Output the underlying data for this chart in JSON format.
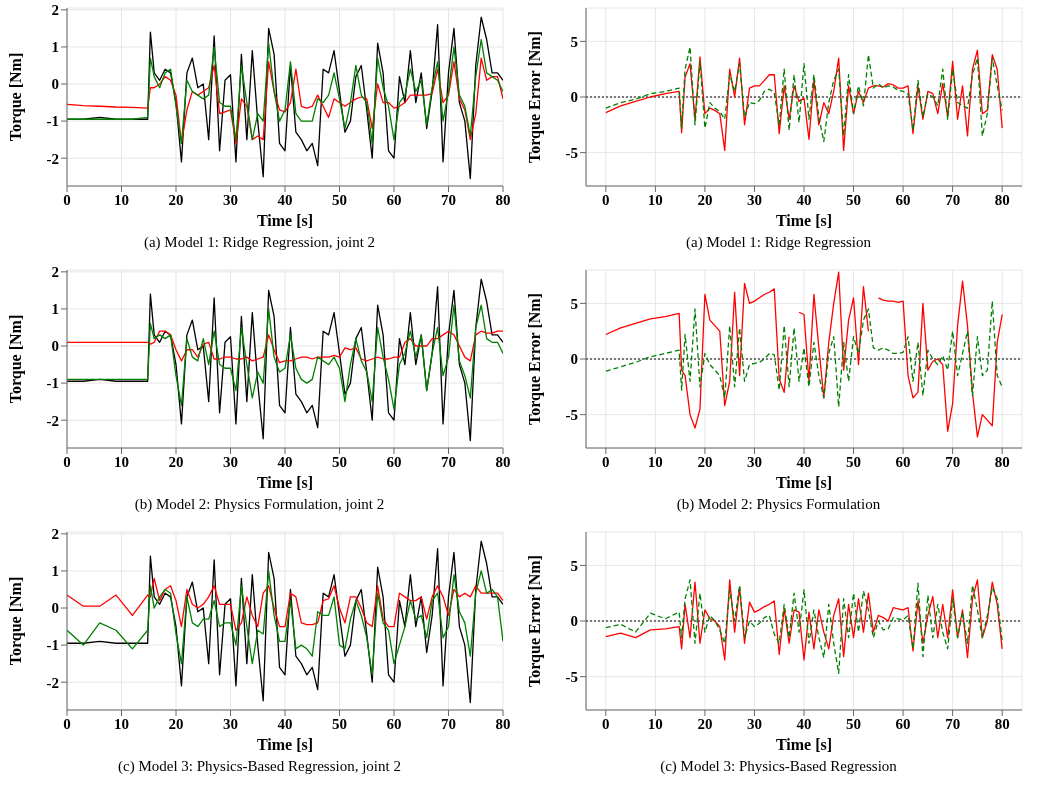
{
  "chart_data": [
    {
      "type": "line",
      "title": "(a) Model 1: Ridge Regression, joint 2",
      "xlabel": "Time [s]",
      "ylabel": "Torque [Nm]",
      "xlim": [
        0,
        80
      ],
      "xticks": [
        0,
        10,
        20,
        30,
        40,
        50,
        60,
        70,
        80
      ],
      "ylim": [
        -2.75,
        2.05
      ],
      "yticks": [
        -2,
        -1,
        0,
        1,
        2
      ],
      "grid": true,
      "x": [
        0,
        3,
        6,
        9,
        12,
        14.8,
        15.3,
        16,
        17,
        18,
        19,
        20,
        21,
        22,
        23,
        24,
        25,
        26,
        27,
        28,
        29,
        30,
        31,
        32,
        33,
        34,
        35,
        36,
        37,
        38,
        39,
        40,
        41,
        42,
        43,
        44,
        45,
        46,
        47,
        48,
        49,
        50,
        51,
        52,
        53,
        54,
        55,
        56,
        57,
        58,
        59,
        60,
        61,
        62,
        63,
        64,
        65,
        66,
        67,
        68,
        69,
        70,
        71,
        72,
        73,
        74,
        75,
        76,
        77,
        78,
        79,
        80
      ],
      "series": [
        {
          "color": "#000000",
          "values": [
            -0.95,
            -0.95,
            -0.9,
            -0.95,
            -0.95,
            -0.95,
            1.4,
            0.3,
            0.1,
            0.4,
            0.3,
            -0.5,
            -2.1,
            0.3,
            0.7,
            -0.1,
            0,
            -1.5,
            1.3,
            -1.8,
            0.1,
            0.25,
            -2.1,
            0.8,
            -1.5,
            0.9,
            -1.0,
            -2.5,
            1.5,
            0.8,
            -1.6,
            -1.8,
            0.5,
            -1.3,
            -1.5,
            -1.8,
            -1.6,
            -2.2,
            0.4,
            0.3,
            0.9,
            -0.2,
            -1.3,
            -1.0,
            0.2,
            0.5,
            -0.7,
            -2.0,
            1.1,
            0.3,
            -1.8,
            -2.0,
            0.2,
            -0.5,
            0.9,
            -0.5,
            0.3,
            -1.2,
            -0.2,
            1.6,
            -2.1,
            0.3,
            1.5,
            -0.5,
            -1.0,
            -2.55,
            0.5,
            1.8,
            1.2,
            0.3,
            0.3,
            0.1
          ]
        },
        {
          "color": "#ff0000",
          "values": [
            -0.55,
            -0.58,
            -0.6,
            -0.62,
            -0.63,
            -0.65,
            -0.1,
            -0.1,
            0.0,
            0.2,
            0.1,
            -0.3,
            -1.6,
            -0.7,
            -0.2,
            -0.3,
            -0.2,
            -0.1,
            0.5,
            -0.8,
            -0.75,
            -0.7,
            -1.6,
            -0.4,
            -0.6,
            -1.5,
            -1.4,
            -1.5,
            0.6,
            -0.2,
            -0.7,
            -0.75,
            -0.5,
            0.4,
            -0.6,
            -0.65,
            -0.6,
            -0.3,
            -0.6,
            -0.9,
            -0.4,
            -0.5,
            -0.6,
            -0.5,
            -0.4,
            -0.35,
            -0.4,
            -1.2,
            0.0,
            -0.5,
            -0.5,
            -0.65,
            -0.6,
            -0.5,
            -0.3,
            -0.3,
            -0.3,
            -0.3,
            -0.25,
            0.4,
            -0.5,
            -0.3,
            0.6,
            -0.4,
            -0.7,
            -1.5,
            -0.8,
            0.7,
            0.1,
            0.2,
            0.2,
            -0.4
          ]
        },
        {
          "color": "#008000",
          "values": [
            -0.95,
            -0.95,
            -0.95,
            -0.95,
            -0.95,
            -0.9,
            0.7,
            0.2,
            -0.1,
            0.3,
            0.4,
            -0.6,
            -1.6,
            0.1,
            -0.2,
            -0.3,
            -0.4,
            -0.3,
            1.0,
            -0.5,
            -0.6,
            -0.6,
            -1.5,
            0.5,
            -0.5,
            -1.5,
            -0.8,
            -1.0,
            1.1,
            -0.2,
            -1.0,
            -0.7,
            0.6,
            -0.8,
            -1.0,
            -1.0,
            -1.0,
            -0.4,
            -0.5,
            -0.3,
            0.3,
            -0.4,
            -1.2,
            -0.5,
            0.5,
            -0.3,
            -0.5,
            -1.6,
            0.7,
            -0.1,
            -0.6,
            -1.5,
            -0.5,
            -0.3,
            0.4,
            -0.2,
            0.1,
            -1.1,
            -0.1,
            0.6,
            -1.0,
            -0.2,
            1.0,
            -0.3,
            -0.6,
            -1.4,
            0.2,
            1.2,
            0.3,
            0.2,
            0.1,
            -0.2
          ]
        }
      ]
    },
    {
      "type": "line",
      "title": "(a) Model 1: Ridge Regression",
      "xlabel": "Time [s]",
      "ylabel": "Torque Error [Nm]",
      "xlim": [
        -4,
        84
      ],
      "xticks": [
        0,
        10,
        20,
        30,
        40,
        50,
        60,
        70,
        80
      ],
      "ylim": [
        -8,
        8
      ],
      "yticks": [
        -5,
        0,
        5
      ],
      "grid": true,
      "ref_lines": [
        {
          "axis": "y",
          "value": 0,
          "color": "#000000",
          "line_style": "dotted"
        }
      ],
      "x": [
        0,
        3,
        6,
        9,
        12,
        14.8,
        15.3,
        16,
        17,
        18,
        19,
        20,
        21,
        22,
        23,
        24,
        25,
        26,
        27,
        28,
        29,
        30,
        31,
        32,
        33,
        34,
        35,
        36,
        37,
        38,
        39,
        40,
        41,
        42,
        43,
        44,
        45,
        46,
        47,
        48,
        49,
        50,
        51,
        52,
        53,
        54,
        55,
        56,
        57,
        58,
        59,
        60,
        61,
        62,
        63,
        64,
        65,
        66,
        67,
        68,
        69,
        70,
        71,
        72,
        73,
        74,
        75,
        76,
        77,
        78,
        79,
        80
      ],
      "series": [
        {
          "color": "#ff0000",
          "values": [
            -1.4,
            -0.8,
            -0.4,
            0.0,
            0.3,
            0.5,
            -3.2,
            1.8,
            3.0,
            -2.0,
            3.6,
            -1.5,
            -1.0,
            -1.2,
            -1.5,
            -4.8,
            2.5,
            0.0,
            3.5,
            -2.5,
            0.8,
            1.0,
            1.0,
            1.5,
            2.0,
            2.0,
            -3.3,
            1.0,
            -2.0,
            1.0,
            -0.4,
            -0.1,
            -3.8,
            1.5,
            -2.5,
            -0.5,
            -1.5,
            0.5,
            3.5,
            -4.8,
            1.0,
            -1.5,
            0.5,
            -0.5,
            0.8,
            1.0,
            1.0,
            0.9,
            1.2,
            1.1,
            0.8,
            0.8,
            1.0,
            -3.3,
            1.0,
            -2.0,
            0.5,
            0.3,
            -1.5,
            1.2,
            -1.8,
            3.2,
            -2.0,
            1.0,
            -3.5,
            2.5,
            4.2,
            -1.5,
            -1.2,
            3.8,
            2.5,
            -2.8
          ]
        },
        {
          "color": "#008000",
          "line_style": "dashed",
          "values": [
            -1.0,
            -0.5,
            -0.2,
            0.3,
            0.5,
            0.8,
            -2.8,
            2.5,
            4.5,
            -2.5,
            3.2,
            -2.8,
            -0.5,
            -1.0,
            -1.3,
            -2.0,
            2.0,
            0.5,
            3.0,
            -1.8,
            -0.5,
            -0.6,
            -0.3,
            0.5,
            0.7,
            0.4,
            -2.5,
            2.5,
            -3.0,
            2.0,
            -2.3,
            3.0,
            -2.0,
            2.0,
            -1.8,
            -4.0,
            -0.5,
            1.5,
            2.5,
            -3.5,
            2.0,
            -1.5,
            1.0,
            -0.8,
            3.8,
            0.8,
            1.2,
            0.8,
            1.0,
            0.9,
            0.6,
            0.5,
            0.3,
            -3.0,
            1.5,
            -1.8,
            0.3,
            0.0,
            -0.8,
            2.5,
            -2.0,
            2.5,
            -0.5,
            -0.8,
            -1.0,
            2.0,
            3.5,
            -3.5,
            -1.5,
            3.5,
            1.0,
            -1.2
          ]
        }
      ]
    },
    {
      "type": "line",
      "title": "(b) Model 2: Physics Formulation, joint 2",
      "xlabel": "Time [s]",
      "ylabel": "Torque [Nm]",
      "xlim": [
        0,
        80
      ],
      "xticks": [
        0,
        10,
        20,
        30,
        40,
        50,
        60,
        70,
        80
      ],
      "ylim": [
        -2.75,
        2.05
      ],
      "yticks": [
        -2,
        -1,
        0,
        1,
        2
      ],
      "grid": true,
      "x": [
        0,
        3,
        6,
        9,
        12,
        14.8,
        15.3,
        16,
        17,
        18,
        19,
        20,
        21,
        22,
        23,
        24,
        25,
        26,
        27,
        28,
        29,
        30,
        31,
        32,
        33,
        34,
        35,
        36,
        37,
        38,
        39,
        40,
        41,
        42,
        43,
        44,
        45,
        46,
        47,
        48,
        49,
        50,
        51,
        52,
        53,
        54,
        55,
        56,
        57,
        58,
        59,
        60,
        61,
        62,
        63,
        64,
        65,
        66,
        67,
        68,
        69,
        70,
        71,
        72,
        73,
        74,
        75,
        76,
        77,
        78,
        79,
        80
      ],
      "series": [
        {
          "color": "#000000",
          "values": [
            -0.95,
            -0.95,
            -0.9,
            -0.95,
            -0.95,
            -0.95,
            1.4,
            0.3,
            0.1,
            0.4,
            0.3,
            -0.5,
            -2.1,
            0.3,
            0.7,
            -0.1,
            0,
            -1.5,
            1.3,
            -1.8,
            0.1,
            0.25,
            -2.1,
            0.8,
            -1.5,
            0.9,
            -1.0,
            -2.5,
            1.5,
            0.8,
            -1.6,
            -1.8,
            0.5,
            -1.3,
            -1.5,
            -1.8,
            -1.6,
            -2.2,
            0.4,
            0.3,
            0.9,
            -0.2,
            -1.3,
            -1.0,
            0.2,
            0.5,
            -0.7,
            -2.0,
            1.1,
            0.3,
            -1.8,
            -2.0,
            0.2,
            -0.5,
            0.9,
            -0.5,
            0.3,
            -1.2,
            -0.2,
            1.6,
            -2.1,
            0.3,
            1.5,
            -0.5,
            -1.0,
            -2.55,
            0.5,
            1.8,
            1.2,
            0.3,
            0.3,
            0.1
          ]
        },
        {
          "color": "#ff0000",
          "values": [
            0.1,
            0.1,
            0.1,
            0.1,
            0.1,
            0.1,
            0.05,
            0.1,
            0.4,
            0.4,
            0.3,
            -0.1,
            -0.4,
            -0.1,
            -0.1,
            -0.3,
            0.05,
            0.1,
            -0.35,
            -0.35,
            -0.3,
            -0.3,
            -0.35,
            -0.35,
            -0.3,
            -0.4,
            -0.35,
            -0.3,
            0.3,
            -0.1,
            -0.45,
            -0.4,
            -0.4,
            -0.35,
            -0.3,
            -0.3,
            -0.35,
            -0.3,
            -0.3,
            -0.3,
            -0.25,
            -0.3,
            -0.05,
            -0.1,
            -0.05,
            -0.35,
            -0.4,
            -0.35,
            -0.3,
            -0.35,
            -0.35,
            -0.3,
            -0.3,
            0.1,
            0.2,
            0.0,
            0.0,
            0.0,
            0.2,
            0.2,
            0.3,
            0.4,
            0.3,
            0.0,
            -0.3,
            -0.4,
            0.3,
            0.4,
            0.35,
            0.35,
            0.4,
            0.4
          ]
        },
        {
          "color": "#008000",
          "values": [
            -0.9,
            -0.9,
            -0.9,
            -0.9,
            -0.9,
            -0.9,
            0.6,
            0.2,
            0.3,
            0.2,
            0.3,
            -0.8,
            -1.6,
            0.2,
            -0.3,
            -0.4,
            0.2,
            -0.5,
            0.4,
            -0.5,
            -0.6,
            -0.6,
            -1.2,
            0.5,
            -0.5,
            -1.4,
            -0.7,
            -1.0,
            1.0,
            -0.3,
            -0.7,
            -0.6,
            0.3,
            -0.6,
            -0.9,
            -1.0,
            -0.9,
            -0.3,
            -0.4,
            -0.5,
            -0.3,
            -0.6,
            -1.5,
            -0.5,
            0.2,
            -0.4,
            -0.7,
            -1.5,
            0.5,
            -0.3,
            -0.9,
            -1.7,
            -0.5,
            -0.2,
            0.4,
            -0.3,
            0.3,
            -1.2,
            -0.2,
            0.5,
            -0.8,
            -0.3,
            1.1,
            -0.4,
            -0.8,
            -1.4,
            0.5,
            1.1,
            0.2,
            0.1,
            0.1,
            -0.2
          ]
        }
      ]
    },
    {
      "type": "line",
      "title": "(b) Model 2: Physics Formulation",
      "xlabel": "Time [s]",
      "ylabel": "Torque Error [Nm]",
      "xlim": [
        -4,
        84
      ],
      "xticks": [
        0,
        10,
        20,
        30,
        40,
        50,
        60,
        70,
        80
      ],
      "ylim": [
        -8,
        8
      ],
      "yticks": [
        -5,
        0,
        5
      ],
      "grid": true,
      "ref_lines": [
        {
          "axis": "y",
          "value": 0,
          "color": "#000000",
          "line_style": "dotted"
        }
      ],
      "x": [
        0,
        3,
        6,
        9,
        12,
        14.8,
        15.3,
        16,
        17,
        18,
        19,
        20,
        21,
        22,
        23,
        24,
        25,
        26,
        27,
        28,
        29,
        30,
        31,
        32,
        33,
        34,
        35,
        36,
        37,
        38,
        39,
        40,
        41,
        42,
        43,
        44,
        45,
        46,
        47,
        48,
        49,
        50,
        51,
        52,
        53,
        54,
        55,
        56,
        57,
        58,
        59,
        60,
        61,
        62,
        63,
        64,
        65,
        66,
        67,
        68,
        69,
        70,
        71,
        72,
        73,
        74,
        75,
        76,
        77,
        78,
        79,
        80
      ],
      "series": [
        {
          "color": "#ff0000",
          "values": [
            2.2,
            2.8,
            3.2,
            3.6,
            3.8,
            4.1,
            -1.0,
            -1.5,
            -5.0,
            -6.2,
            -4.5,
            5.8,
            3.5,
            3.0,
            2.5,
            -4.2,
            -2.0,
            6.0,
            -1.5,
            6.8,
            5.0,
            5.2,
            5.5,
            5.8,
            6.0,
            6.3,
            -1.8,
            -3.0,
            2.0,
            null,
            4.2,
            4.0,
            -2.0,
            5.8,
            1.0,
            -3.5,
            1.5,
            5.0,
            7.8,
            -1.0,
            3.5,
            5.5,
            -0.5,
            6.5,
            2.5,
            null,
            5.5,
            5.3,
            5.2,
            5.2,
            5.1,
            5.2,
            -1.5,
            -3.5,
            -3.0,
            5.0,
            -1.0,
            -0.2,
            0.0,
            -0.5,
            -6.5,
            -4.0,
            3.0,
            7.0,
            3.0,
            -3.0,
            -7.0,
            -5.0,
            -5.5,
            -6.0,
            1.5,
            4.0
          ]
        },
        {
          "color": "#008000",
          "line_style": "dashed",
          "values": [
            -1.1,
            -0.7,
            -0.3,
            0.2,
            0.5,
            0.8,
            -2.8,
            2.2,
            -2.0,
            4.5,
            -2.5,
            0.5,
            -0.5,
            -1.0,
            -1.5,
            -3.5,
            3.0,
            -2.5,
            2.8,
            -2.0,
            -0.5,
            -0.4,
            -0.3,
            0.0,
            0.5,
            0.4,
            -2.8,
            3.0,
            -2.5,
            2.8,
            -2.0,
            1.0,
            -2.5,
            1.5,
            -1.5,
            -3.5,
            0.5,
            2.0,
            -4.3,
            1.5,
            -2.0,
            2.0,
            0.5,
            3.5,
            4.5,
            1.0,
            0.8,
            1.0,
            0.8,
            0.5,
            0.5,
            0.6,
            2.0,
            -2.0,
            1.5,
            -3.3,
            0.8,
            0.0,
            -0.5,
            0.3,
            -1.0,
            2.5,
            -1.5,
            0.5,
            2.5,
            -3.3,
            2.0,
            -1.5,
            -1.0,
            5.2,
            -1.5,
            -2.5
          ]
        }
      ]
    },
    {
      "type": "line",
      "title": "(c) Model 3: Physics-Based Regression, joint 2",
      "xlabel": "Time [s]",
      "ylabel": "Torque [Nm]",
      "xlim": [
        0,
        80
      ],
      "xticks": [
        0,
        10,
        20,
        30,
        40,
        50,
        60,
        70,
        80
      ],
      "ylim": [
        -2.75,
        2.05
      ],
      "yticks": [
        -2,
        -1,
        0,
        1,
        2
      ],
      "grid": true,
      "x": [
        0,
        3,
        6,
        9,
        12,
        14.8,
        15.3,
        16,
        17,
        18,
        19,
        20,
        21,
        22,
        23,
        24,
        25,
        26,
        27,
        28,
        29,
        30,
        31,
        32,
        33,
        34,
        35,
        36,
        37,
        38,
        39,
        40,
        41,
        42,
        43,
        44,
        45,
        46,
        47,
        48,
        49,
        50,
        51,
        52,
        53,
        54,
        55,
        56,
        57,
        58,
        59,
        60,
        61,
        62,
        63,
        64,
        65,
        66,
        67,
        68,
        69,
        70,
        71,
        72,
        73,
        74,
        75,
        76,
        77,
        78,
        79,
        80
      ],
      "series": [
        {
          "color": "#000000",
          "values": [
            -0.95,
            -0.95,
            -0.9,
            -0.95,
            -0.95,
            -0.95,
            1.4,
            0.3,
            0.1,
            0.4,
            0.3,
            -0.5,
            -2.1,
            0.3,
            0.7,
            -0.1,
            0,
            -1.5,
            1.3,
            -1.8,
            0.1,
            0.25,
            -2.1,
            0.8,
            -1.5,
            0.9,
            -1.0,
            -2.5,
            1.5,
            0.8,
            -1.6,
            -1.8,
            0.5,
            -1.3,
            -1.5,
            -1.8,
            -1.6,
            -2.2,
            0.4,
            0.3,
            0.9,
            -0.2,
            -1.3,
            -1.0,
            0.2,
            0.5,
            -0.7,
            -2.0,
            1.1,
            0.3,
            -1.8,
            -2.0,
            0.2,
            -0.5,
            0.9,
            -0.5,
            0.3,
            -1.2,
            -0.2,
            1.6,
            -2.1,
            0.3,
            1.5,
            -0.5,
            -1.0,
            -2.55,
            0.5,
            1.8,
            1.2,
            0.3,
            0.3,
            0.1
          ]
        },
        {
          "color": "#ff0000",
          "values": [
            0.35,
            0.05,
            0.05,
            0.35,
            -0.2,
            0.35,
            0.3,
            0.8,
            0.2,
            0.5,
            0.6,
            0.2,
            -0.5,
            0.5,
            0.1,
            0.0,
            0.1,
            0.3,
            0.6,
            0.1,
            0.1,
            0.1,
            -0.6,
            -0.4,
            0.3,
            -0.2,
            -0.5,
            0.4,
            0.6,
            0.0,
            -0.5,
            -0.5,
            0.4,
            0.3,
            -0.4,
            -0.45,
            -0.45,
            -0.4,
            0.2,
            0.25,
            0.6,
            0.0,
            -0.4,
            0.3,
            0.3,
            0.0,
            -0.4,
            -0.5,
            0.6,
            -0.3,
            -0.5,
            -0.5,
            0.4,
            0.3,
            0.2,
            0.2,
            0.3,
            -0.3,
            0.3,
            0.6,
            0.3,
            -0.2,
            0.5,
            0.3,
            0.4,
            0.3,
            0.6,
            0.4,
            0.4,
            0.4,
            0.4,
            0.2
          ]
        },
        {
          "color": "#008000",
          "values": [
            -0.6,
            -1.0,
            -0.4,
            -0.6,
            -1.1,
            -0.6,
            0.6,
            0.0,
            0.3,
            0.5,
            0.4,
            -0.7,
            -1.5,
            0.3,
            -0.4,
            -0.5,
            -0.3,
            -0.3,
            0.2,
            -0.5,
            -0.4,
            -0.4,
            -1.0,
            0.6,
            -0.5,
            -1.5,
            -0.6,
            -0.7,
            1.0,
            -0.2,
            -0.9,
            -0.9,
            0.2,
            -1.1,
            -1.0,
            -1.1,
            -1.3,
            -0.1,
            -0.2,
            -0.2,
            0.3,
            -1.0,
            -1.1,
            -0.3,
            0.2,
            -0.2,
            -0.8,
            -1.8,
            0.4,
            -0.4,
            -0.6,
            -1.5,
            -1.0,
            -0.5,
            0.2,
            -0.3,
            -0.2,
            -0.8,
            0.2,
            0.4,
            -0.8,
            -0.5,
            0.9,
            -0.1,
            -0.4,
            -1.3,
            0.4,
            1.0,
            0.4,
            0.5,
            0.3,
            -0.9
          ]
        }
      ]
    },
    {
      "type": "line",
      "title": "(c) Model 3: Physics-Based Regression",
      "xlabel": "Time [s]",
      "ylabel": "Torque Error [Nm]",
      "xlim": [
        -4,
        84
      ],
      "xticks": [
        0,
        10,
        20,
        30,
        40,
        50,
        60,
        70,
        80
      ],
      "ylim": [
        -8,
        8
      ],
      "yticks": [
        -5,
        0,
        5
      ],
      "grid": true,
      "ref_lines": [
        {
          "axis": "y",
          "value": 0,
          "color": "#000000",
          "line_style": "dotted"
        }
      ],
      "x": [
        0,
        3,
        6,
        9,
        12,
        14.8,
        15.3,
        16,
        17,
        18,
        19,
        20,
        21,
        22,
        23,
        24,
        25,
        26,
        27,
        28,
        29,
        30,
        31,
        32,
        33,
        34,
        35,
        36,
        37,
        38,
        39,
        40,
        41,
        42,
        43,
        44,
        45,
        46,
        47,
        48,
        49,
        50,
        51,
        52,
        53,
        54,
        55,
        56,
        57,
        58,
        59,
        60,
        61,
        62,
        63,
        64,
        65,
        66,
        67,
        68,
        69,
        70,
        71,
        72,
        73,
        74,
        75,
        76,
        77,
        78,
        79,
        80
      ],
      "series": [
        {
          "color": "#ff0000",
          "values": [
            -1.4,
            -1.1,
            -1.5,
            -0.8,
            -0.7,
            -0.5,
            -2.5,
            1.5,
            -1.5,
            3.5,
            -2.0,
            1.0,
            0.2,
            0.0,
            -0.5,
            -3.5,
            3.7,
            -1.0,
            3.0,
            -2.0,
            1.7,
            0.8,
            1.0,
            1.3,
            1.5,
            1.8,
            -3.0,
            1.1,
            -2.0,
            1.0,
            0.8,
            -3.5,
            0.8,
            -2.5,
            1.0,
            -1.0,
            -2.5,
            0.5,
            2.0,
            -3.2,
            1.5,
            -1.5,
            2.0,
            -1.0,
            2.5,
            -1.0,
            0.5,
            0.3,
            0.0,
            1.2,
            1.1,
            1.0,
            1.2,
            -2.7,
            1.8,
            -2.0,
            0.5,
            2.2,
            -1.5,
            1.5,
            -1.5,
            2.8,
            -1.5,
            1.0,
            -3.3,
            2.0,
            3.7,
            -1.5,
            0.0,
            3.5,
            1.5,
            -2.5
          ]
        },
        {
          "color": "#008000",
          "line_style": "dashed",
          "values": [
            -0.6,
            -0.3,
            -1.0,
            0.7,
            0.2,
            0.8,
            -1.5,
            2.0,
            3.7,
            -2.0,
            2.5,
            -1.0,
            0.5,
            0.0,
            -0.8,
            -2.0,
            2.8,
            0.0,
            3.2,
            -1.5,
            0.0,
            -0.5,
            -0.2,
            0.3,
            0.5,
            -1.2,
            -2.0,
            1.5,
            -1.5,
            2.5,
            -1.0,
            2.8,
            -2.0,
            1.0,
            -1.5,
            -3.3,
            1.5,
            -2.0,
            -4.7,
            2.0,
            -1.5,
            2.5,
            -1.0,
            2.7,
            1.0,
            -1.5,
            0.0,
            -0.8,
            -0.7,
            0.3,
            0.2,
            0.1,
            0.5,
            -2.5,
            3.4,
            -3.2,
            2.3,
            -1.5,
            1.5,
            -1.0,
            -2.5,
            2.0,
            -1.5,
            0.8,
            -2.0,
            3.2,
            1.0,
            -1.5,
            0.5,
            3.0,
            2.0,
            -1.8
          ]
        }
      ]
    }
  ]
}
